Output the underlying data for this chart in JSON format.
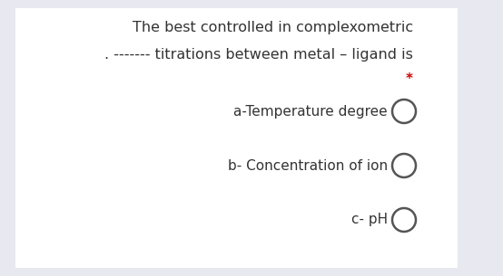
{
  "background_color": "#e8e8f0",
  "panel_color": "#ffffff",
  "title_line1": "The best controlled in complexometric",
  "title_line2": ". ------- titrations between metal – ligand is",
  "asterisk": "*",
  "options": [
    "a-Temperature degree",
    "b- Concentration of ion",
    "c- pH"
  ],
  "text_color": "#333333",
  "asterisk_color": "#cc0000",
  "circle_edge_color": "#555555",
  "font_size_title": 11.5,
  "font_size_options": 11,
  "font_size_asterisk": 11
}
